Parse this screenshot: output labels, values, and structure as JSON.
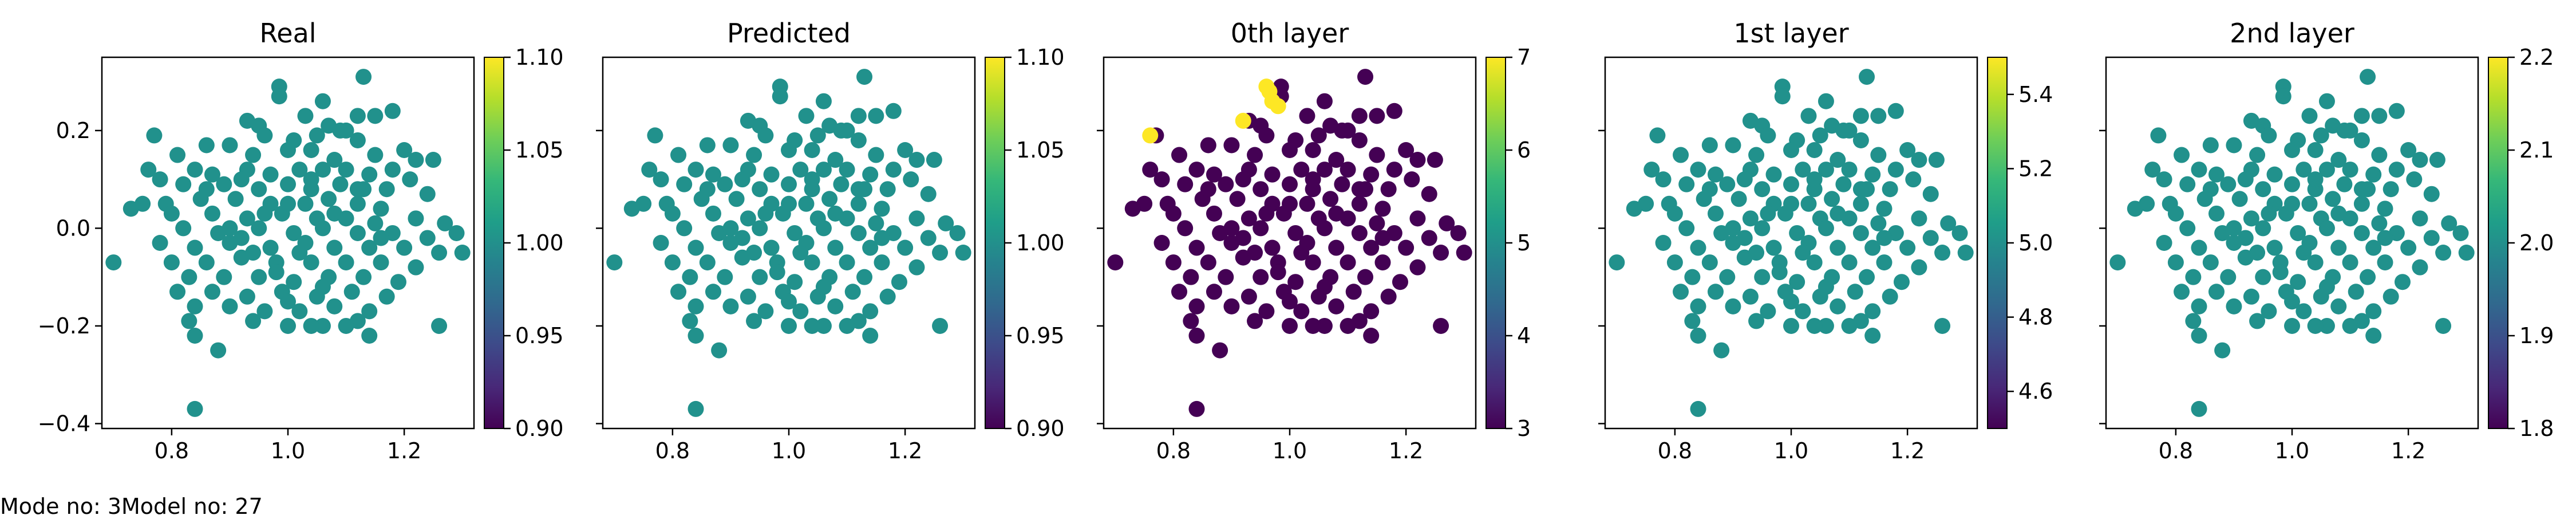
{
  "footer": {
    "text": "Mode no: 3Model no: 27"
  },
  "chart_data": [
    {
      "type": "scatter",
      "title": "Real",
      "xlim": [
        0.68,
        1.32
      ],
      "ylim": [
        -0.41,
        0.35
      ],
      "xticks": [
        0.8,
        1.0,
        1.2
      ],
      "yticks": [
        -0.4,
        -0.2,
        0.0,
        0.2
      ],
      "show_yticklabels": true,
      "colorbar": {
        "cmap": "viridis",
        "range": [
          0.9,
          1.1
        ],
        "ticks": [
          "0.90",
          "0.95",
          "1.00",
          "1.05",
          "1.10"
        ]
      },
      "point_color": "#21918c",
      "color_value": 1.0
    },
    {
      "type": "scatter",
      "title": "Predicted",
      "xlim": [
        0.68,
        1.32
      ],
      "ylim": [
        -0.41,
        0.35
      ],
      "xticks": [
        0.8,
        1.0,
        1.2
      ],
      "yticks": [
        -0.4,
        -0.2,
        0.0,
        0.2
      ],
      "show_yticklabels": false,
      "colorbar": {
        "cmap": "viridis",
        "range": [
          0.9,
          1.1
        ],
        "ticks": [
          "0.90",
          "0.95",
          "1.00",
          "1.05",
          "1.10"
        ]
      },
      "point_color": "#21918c",
      "color_value": 1.0
    },
    {
      "type": "scatter",
      "title": "0th layer",
      "xlim": [
        0.68,
        1.32
      ],
      "ylim": [
        -0.41,
        0.35
      ],
      "xticks": [
        0.8,
        1.0,
        1.2
      ],
      "yticks": [
        -0.4,
        -0.2,
        0.0,
        0.2
      ],
      "show_yticklabels": false,
      "colorbar": {
        "cmap": "viridis",
        "range": [
          3,
          7
        ],
        "ticks": [
          "3",
          "4",
          "5",
          "6",
          "7"
        ]
      },
      "point_color": "#440154",
      "color_value": 3,
      "highlight_color": "#fde725",
      "highlight_value": 7,
      "highlight_points": [
        [
          0.76,
          0.19
        ],
        [
          0.92,
          0.22
        ],
        [
          0.96,
          0.29
        ],
        [
          0.965,
          0.28
        ],
        [
          0.97,
          0.26
        ],
        [
          0.98,
          0.25
        ]
      ]
    },
    {
      "type": "scatter",
      "title": "1st layer",
      "xlim": [
        0.68,
        1.32
      ],
      "ylim": [
        -0.41,
        0.35
      ],
      "xticks": [
        0.8,
        1.0,
        1.2
      ],
      "yticks": [
        -0.4,
        -0.2,
        0.0,
        0.2
      ],
      "show_yticklabels": false,
      "colorbar": {
        "cmap": "viridis",
        "range": [
          4.5,
          5.5
        ],
        "ticks": [
          "4.6",
          "4.8",
          "5.0",
          "5.2",
          "5.4"
        ]
      },
      "point_color": "#21918c",
      "color_value": 5.0
    },
    {
      "type": "scatter",
      "title": "2nd layer",
      "xlim": [
        0.68,
        1.32
      ],
      "ylim": [
        -0.41,
        0.35
      ],
      "xticks": [
        0.8,
        1.0,
        1.2
      ],
      "yticks": [
        -0.4,
        -0.2,
        0.0,
        0.2
      ],
      "show_yticklabels": false,
      "colorbar": {
        "cmap": "viridis",
        "range": [
          1.8,
          2.2
        ],
        "ticks": [
          "1.8",
          "1.9",
          "2.0",
          "2.1",
          "2.2"
        ]
      },
      "point_color": "#21918c",
      "color_value": 2.0
    }
  ],
  "shared_points": [
    [
      1.13,
      0.31
    ],
    [
      0.985,
      0.29
    ],
    [
      0.985,
      0.27
    ],
    [
      1.06,
      0.26
    ],
    [
      1.18,
      0.24
    ],
    [
      1.03,
      0.23
    ],
    [
      1.12,
      0.23
    ],
    [
      1.15,
      0.23
    ],
    [
      0.93,
      0.22
    ],
    [
      0.95,
      0.21
    ],
    [
      1.07,
      0.21
    ],
    [
      1.09,
      0.2
    ],
    [
      1.1,
      0.2
    ],
    [
      0.77,
      0.19
    ],
    [
      0.96,
      0.19
    ],
    [
      1.05,
      0.19
    ],
    [
      1.12,
      0.18
    ],
    [
      1.01,
      0.18
    ],
    [
      0.86,
      0.17
    ],
    [
      0.9,
      0.17
    ],
    [
      1.0,
      0.16
    ],
    [
      1.04,
      0.16
    ],
    [
      1.15,
      0.15
    ],
    [
      1.2,
      0.16
    ],
    [
      1.22,
      0.14
    ],
    [
      1.25,
      0.14
    ],
    [
      0.81,
      0.15
    ],
    [
      0.94,
      0.15
    ],
    [
      1.08,
      0.14
    ],
    [
      0.76,
      0.12
    ],
    [
      0.78,
      0.1
    ],
    [
      0.84,
      0.12
    ],
    [
      0.87,
      0.11
    ],
    [
      0.93,
      0.12
    ],
    [
      0.97,
      0.11
    ],
    [
      1.02,
      0.12
    ],
    [
      1.06,
      0.12
    ],
    [
      1.1,
      0.12
    ],
    [
      1.14,
      0.11
    ],
    [
      1.18,
      0.12
    ],
    [
      1.21,
      0.1
    ],
    [
      0.82,
      0.09
    ],
    [
      0.89,
      0.09
    ],
    [
      0.95,
      0.08
    ],
    [
      1.0,
      0.09
    ],
    [
      1.04,
      0.08
    ],
    [
      1.09,
      0.09
    ],
    [
      1.13,
      0.08
    ],
    [
      1.17,
      0.08
    ],
    [
      1.24,
      0.07
    ],
    [
      0.75,
      0.05
    ],
    [
      0.79,
      0.05
    ],
    [
      0.85,
      0.06
    ],
    [
      0.91,
      0.06
    ],
    [
      0.97,
      0.05
    ],
    [
      1.03,
      0.05
    ],
    [
      1.07,
      0.06
    ],
    [
      1.12,
      0.05
    ],
    [
      1.16,
      0.04
    ],
    [
      0.73,
      0.04
    ],
    [
      0.8,
      0.03
    ],
    [
      0.87,
      0.03
    ],
    [
      0.93,
      0.02
    ],
    [
      0.99,
      0.03
    ],
    [
      1.05,
      0.02
    ],
    [
      1.1,
      0.02
    ],
    [
      1.15,
      0.01
    ],
    [
      1.22,
      0.02
    ],
    [
      1.27,
      0.01
    ],
    [
      1.29,
      -0.01
    ],
    [
      0.82,
      0.0
    ],
    [
      0.88,
      -0.01
    ],
    [
      0.95,
      0.0
    ],
    [
      1.01,
      -0.01
    ],
    [
      1.06,
      0.0
    ],
    [
      1.12,
      -0.01
    ],
    [
      1.18,
      -0.01
    ],
    [
      1.24,
      -0.02
    ],
    [
      0.7,
      -0.07
    ],
    [
      0.78,
      -0.03
    ],
    [
      0.84,
      -0.04
    ],
    [
      0.9,
      -0.03
    ],
    [
      0.97,
      -0.04
    ],
    [
      1.03,
      -0.03
    ],
    [
      1.08,
      -0.04
    ],
    [
      1.14,
      -0.04
    ],
    [
      1.2,
      -0.04
    ],
    [
      1.26,
      -0.05
    ],
    [
      1.3,
      -0.05
    ],
    [
      0.8,
      -0.07
    ],
    [
      0.86,
      -0.07
    ],
    [
      0.92,
      -0.06
    ],
    [
      0.98,
      -0.07
    ],
    [
      1.04,
      -0.07
    ],
    [
      1.1,
      -0.07
    ],
    [
      1.16,
      -0.07
    ],
    [
      1.22,
      -0.08
    ],
    [
      0.83,
      -0.1
    ],
    [
      0.89,
      -0.1
    ],
    [
      0.95,
      -0.1
    ],
    [
      1.01,
      -0.11
    ],
    [
      1.07,
      -0.1
    ],
    [
      1.13,
      -0.1
    ],
    [
      1.19,
      -0.11
    ],
    [
      0.81,
      -0.13
    ],
    [
      0.87,
      -0.13
    ],
    [
      0.93,
      -0.14
    ],
    [
      0.99,
      -0.13
    ],
    [
      1.05,
      -0.14
    ],
    [
      1.11,
      -0.13
    ],
    [
      1.17,
      -0.14
    ],
    [
      0.84,
      -0.16
    ],
    [
      0.9,
      -0.16
    ],
    [
      0.96,
      -0.17
    ],
    [
      1.02,
      -0.17
    ],
    [
      1.08,
      -0.16
    ],
    [
      1.14,
      -0.17
    ],
    [
      0.83,
      -0.19
    ],
    [
      0.94,
      -0.19
    ],
    [
      1.0,
      -0.2
    ],
    [
      1.06,
      -0.2
    ],
    [
      1.12,
      -0.19
    ],
    [
      0.84,
      -0.22
    ],
    [
      1.04,
      -0.2
    ],
    [
      1.1,
      -0.2
    ],
    [
      1.14,
      -0.22
    ],
    [
      1.26,
      -0.2
    ],
    [
      0.88,
      -0.25
    ],
    [
      0.84,
      -0.37
    ],
    [
      0.92,
      -0.02
    ],
    [
      0.96,
      0.03
    ],
    [
      1.0,
      0.05
    ],
    [
      1.02,
      -0.05
    ],
    [
      0.98,
      -0.09
    ],
    [
      1.04,
      0.1
    ],
    [
      1.06,
      -0.12
    ],
    [
      0.9,
      0.0
    ],
    [
      1.08,
      0.03
    ],
    [
      0.94,
      -0.05
    ],
    [
      1.12,
      0.08
    ],
    [
      0.86,
      0.08
    ],
    [
      1.0,
      -0.15
    ],
    [
      1.16,
      -0.02
    ],
    [
      0.92,
      0.1
    ]
  ]
}
